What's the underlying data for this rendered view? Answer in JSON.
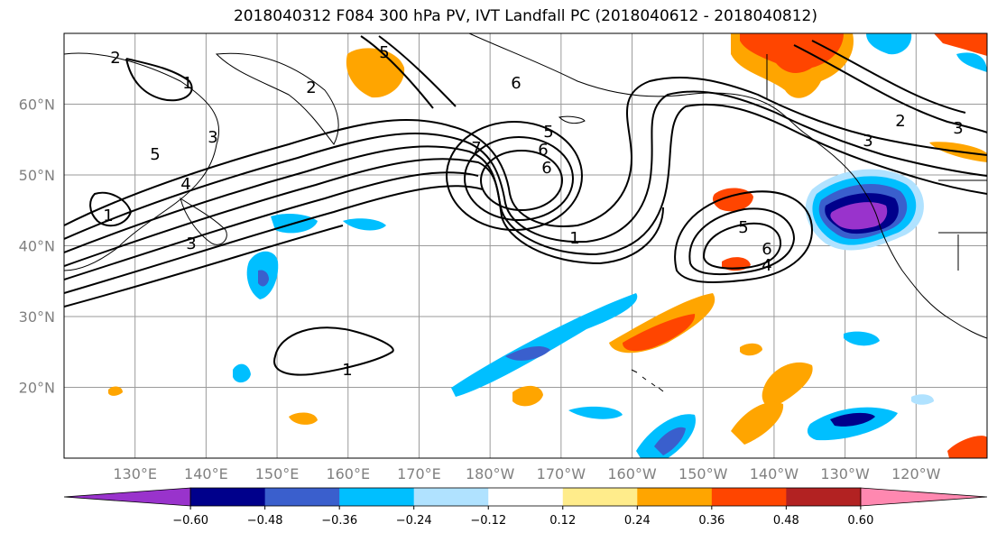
{
  "title": "2018040312 F084 300 hPa PV, IVT Landfall PC (2018040612 - 2018040812)",
  "map": {
    "lat_labels": [
      {
        "text": "60°N",
        "lat": 60
      },
      {
        "text": "50°N",
        "lat": 50
      },
      {
        "text": "40°N",
        "lat": 40
      },
      {
        "text": "30°N",
        "lat": 30
      },
      {
        "text": "20°N",
        "lat": 20
      }
    ],
    "lon_labels": [
      {
        "text": "130°E",
        "lon": 130
      },
      {
        "text": "140°E",
        "lon": 140
      },
      {
        "text": "150°E",
        "lon": 150
      },
      {
        "text": "160°E",
        "lon": 160
      },
      {
        "text": "170°E",
        "lon": 170
      },
      {
        "text": "180°W",
        "lon": 180
      },
      {
        "text": "170°W",
        "lon": 190
      },
      {
        "text": "160°W",
        "lon": 200
      },
      {
        "text": "150°W",
        "lon": 210
      },
      {
        "text": "140°W",
        "lon": 220
      },
      {
        "text": "130°W",
        "lon": 230
      },
      {
        "text": "120°W",
        "lon": 240
      }
    ],
    "lon_range": [
      120,
      250
    ],
    "lat_range": [
      10,
      70
    ],
    "grid": true,
    "contour_labels": [
      "2",
      "1",
      "2",
      "5",
      "6",
      "3",
      "5",
      "4",
      "1",
      "3",
      "7",
      "6",
      "6",
      "5",
      "1",
      "5",
      "6",
      "4",
      "2",
      "3",
      "1",
      "3"
    ]
  },
  "colorbar": {
    "ticks": [
      "−0.60",
      "−0.48",
      "−0.36",
      "−0.24",
      "−0.12",
      "0.12",
      "0.24",
      "0.36",
      "0.48",
      "0.60"
    ],
    "colors": [
      "#9933cc",
      "#00008b",
      "#3a5fcd",
      "#00bfff",
      "#b0e2ff",
      "#ffffff",
      "#ffec8b",
      "#ffa500",
      "#ff4500",
      "#b22222",
      "#ff88b0"
    ]
  }
}
